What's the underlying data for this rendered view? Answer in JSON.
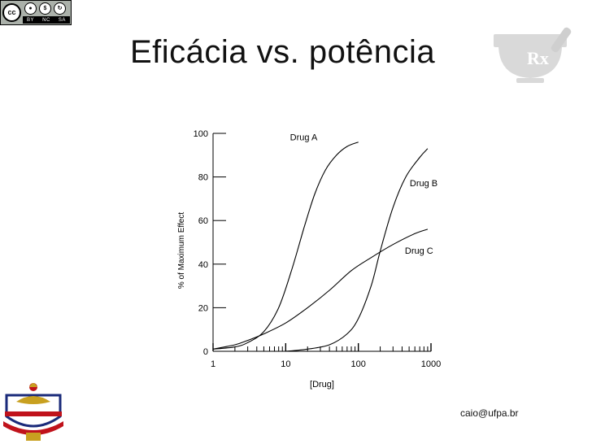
{
  "license_badge": {
    "symbol": "cc",
    "bar": [
      "BY",
      "NC",
      "SA"
    ],
    "icons": [
      "person-icon",
      "no-dollar-icon",
      "share-alike-icon"
    ]
  },
  "slide": {
    "title": "Eficácia vs. potência",
    "email": "caio@ufpa.br"
  },
  "logo": {
    "name": "mortar-pestle-rx-icon",
    "text": "Rx"
  },
  "crest": {
    "name": "university-crest-icon"
  },
  "chart_data": {
    "type": "line",
    "xlabel": "[Drug]",
    "ylabel": "% of Maximum Effect",
    "x_scale": "log",
    "xlim": [
      1,
      1000
    ],
    "ylim": [
      0,
      100
    ],
    "x_ticks": [
      {
        "value": 1,
        "label": "1"
      },
      {
        "value": 10,
        "label": "10"
      },
      {
        "value": 100,
        "label": "100"
      },
      {
        "value": 1000,
        "label": "1000"
      }
    ],
    "y_ticks": [
      {
        "value": 0,
        "label": "0"
      },
      {
        "value": 20,
        "label": "20"
      },
      {
        "value": 40,
        "label": "40"
      },
      {
        "value": 60,
        "label": "60"
      },
      {
        "value": 80,
        "label": "80"
      },
      {
        "value": 100,
        "label": "100"
      }
    ],
    "series": [
      {
        "name": "Drug A",
        "x": [
          1,
          2,
          3,
          5,
          8,
          12,
          18,
          25,
          35,
          50,
          70,
          100
        ],
        "y": [
          1,
          2,
          4,
          9,
          20,
          37,
          57,
          72,
          83,
          90,
          94,
          96
        ]
      },
      {
        "name": "Drug B",
        "x": [
          10,
          20,
          40,
          70,
          100,
          150,
          200,
          300,
          450,
          700,
          900
        ],
        "y": [
          0,
          1,
          3,
          8,
          15,
          30,
          46,
          66,
          80,
          89,
          93
        ]
      },
      {
        "name": "Drug C",
        "x": [
          1,
          2,
          3,
          5,
          10,
          20,
          40,
          80,
          150,
          300,
          600,
          900
        ],
        "y": [
          1,
          3,
          5,
          8,
          13,
          20,
          28,
          37,
          43,
          49,
          54,
          56
        ]
      }
    ],
    "legend": "inline labels at curve ends"
  }
}
